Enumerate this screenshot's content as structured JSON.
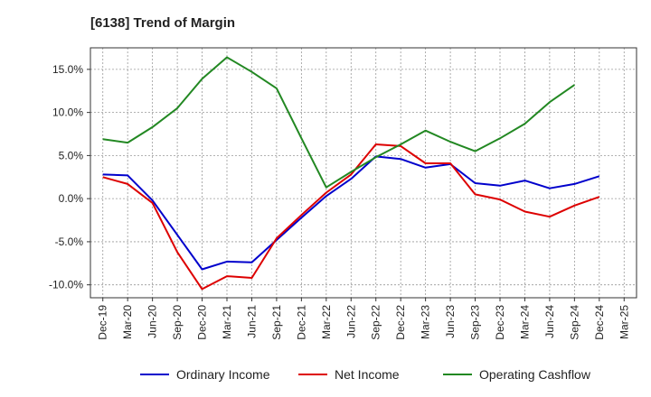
{
  "chart_data": {
    "type": "line",
    "title": "[6138]  Trend of Margin",
    "xlabel": "",
    "ylabel": "",
    "x": [
      "Dec-19",
      "Mar-20",
      "Jun-20",
      "Sep-20",
      "Dec-20",
      "Mar-21",
      "Jun-21",
      "Sep-21",
      "Dec-21",
      "Mar-22",
      "Jun-22",
      "Sep-22",
      "Dec-22",
      "Mar-23",
      "Jun-23",
      "Sep-23",
      "Dec-23",
      "Mar-24",
      "Jun-24",
      "Sep-24",
      "Dec-24",
      "Mar-25"
    ],
    "ylim": [
      -11.5,
      17.5
    ],
    "yticks": [
      -10.0,
      -5.0,
      0.0,
      5.0,
      10.0,
      15.0
    ],
    "ytick_labels": [
      "-10.0%",
      "-5.0%",
      "0.0%",
      "5.0%",
      "10.0%",
      "15.0%"
    ],
    "grid": true,
    "legend_position": "bottom",
    "series": [
      {
        "name": "Ordinary Income",
        "color": "#0000cc",
        "values": [
          2.8,
          2.7,
          -0.2,
          -4.2,
          -8.2,
          -7.3,
          -7.4,
          -4.8,
          -2.2,
          0.3,
          2.3,
          4.9,
          4.6,
          3.6,
          4.0,
          1.8,
          1.5,
          2.1,
          1.2,
          1.7,
          2.6,
          null
        ]
      },
      {
        "name": "Net Income",
        "color": "#dd0000",
        "values": [
          2.5,
          1.7,
          -0.5,
          -6.2,
          -10.5,
          -9.0,
          -9.2,
          -4.6,
          -1.9,
          0.7,
          2.8,
          6.3,
          6.1,
          4.1,
          4.1,
          0.5,
          -0.1,
          -1.5,
          -2.1,
          -0.8,
          0.2,
          null
        ]
      },
      {
        "name": "Operating Cashflow",
        "color": "#228822",
        "values": [
          6.9,
          6.5,
          8.3,
          10.5,
          13.9,
          16.4,
          14.7,
          12.8,
          7.0,
          1.3,
          3.1,
          4.8,
          6.3,
          7.9,
          6.6,
          5.5,
          7.0,
          8.7,
          11.2,
          13.2,
          null,
          null
        ]
      }
    ]
  }
}
